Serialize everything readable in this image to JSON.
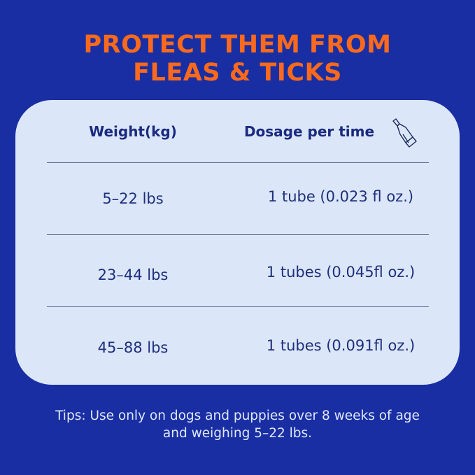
{
  "title": {
    "line1": "PROTECT THEM FROM",
    "line2": "FLEAS & TICKS"
  },
  "table": {
    "headers": {
      "weight": "Weight(kg)",
      "dosage": "Dosage per time",
      "dosage_icon": "tube-icon"
    },
    "rows": [
      {
        "weight": "5–22 lbs",
        "dosage": "1 tube (0.023 fl oz.)"
      },
      {
        "weight": "23–44 lbs",
        "dosage": "1 tubes (0.045fl oz.)"
      },
      {
        "weight": "45–88 lbs",
        "dosage": "1 tubes (0.091fl oz.)"
      }
    ]
  },
  "tips": {
    "line1": "Tips: Use only on dogs and puppies over 8 weeks of age",
    "line2": "and weighing 5–22 lbs."
  },
  "colors": {
    "background": "#1a2ea3",
    "title": "#fb6a1c",
    "card": "#dbe7f8",
    "text": "#1b2a80"
  }
}
